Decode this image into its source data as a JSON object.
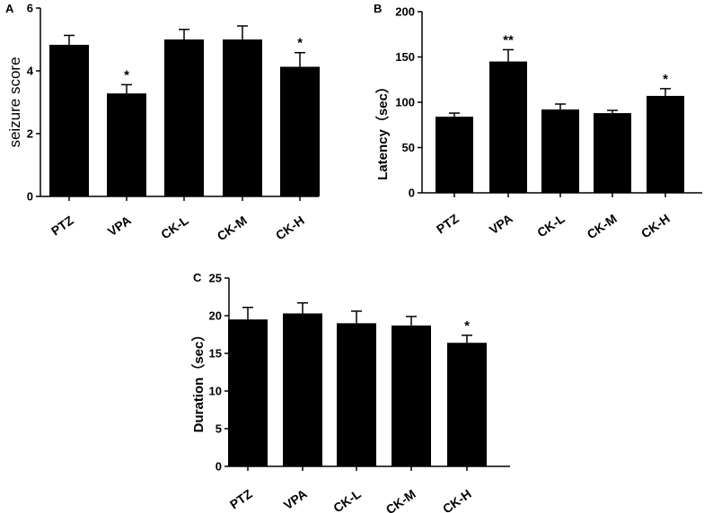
{
  "figure": {
    "panels": [
      "A",
      "B",
      "C"
    ]
  },
  "chart_data": [
    {
      "panel": "A",
      "type": "bar",
      "categories": [
        "PTZ",
        "VPA",
        "CK-L",
        "CK-M",
        "CK-H"
      ],
      "values": [
        4.83,
        3.28,
        5.0,
        5.0,
        4.13
      ],
      "errors": [
        0.3,
        0.28,
        0.32,
        0.43,
        0.45
      ],
      "significance": [
        "",
        "*",
        "",
        "",
        "*"
      ],
      "title": "",
      "xlabel": "",
      "ylabel": "seizure score",
      "ylim": [
        0,
        6
      ],
      "yticks": [
        "0",
        "2",
        "4",
        "6"
      ],
      "grid": false,
      "bar_color": "#000000"
    },
    {
      "panel": "B",
      "type": "bar",
      "categories": [
        "PTZ",
        "VPA",
        "CK-L",
        "CK-M",
        "CK-H"
      ],
      "values": [
        84,
        145,
        92,
        88,
        107
      ],
      "errors": [
        4,
        13,
        6,
        3,
        8
      ],
      "significance": [
        "",
        "**",
        "",
        "",
        "*"
      ],
      "title": "",
      "xlabel": "",
      "ylabel": "Latency（sec）",
      "ylim": [
        0,
        200
      ],
      "yticks": [
        "0",
        "50",
        "100",
        "150",
        "200"
      ],
      "grid": false,
      "bar_color": "#000000"
    },
    {
      "panel": "C",
      "type": "bar",
      "categories": [
        "PTZ",
        "VPA",
        "CK-L",
        "CK-M",
        "CK-H"
      ],
      "values": [
        19.5,
        20.3,
        19.0,
        18.7,
        16.4
      ],
      "errors": [
        1.6,
        1.4,
        1.6,
        1.2,
        1.0
      ],
      "significance": [
        "",
        "",
        "",
        "",
        "*"
      ],
      "title": "",
      "xlabel": "",
      "ylabel": "Duration（sec）",
      "ylim": [
        0,
        25
      ],
      "yticks": [
        "0",
        "5",
        "10",
        "15",
        "20",
        "25"
      ],
      "grid": false,
      "bar_color": "#000000"
    }
  ]
}
